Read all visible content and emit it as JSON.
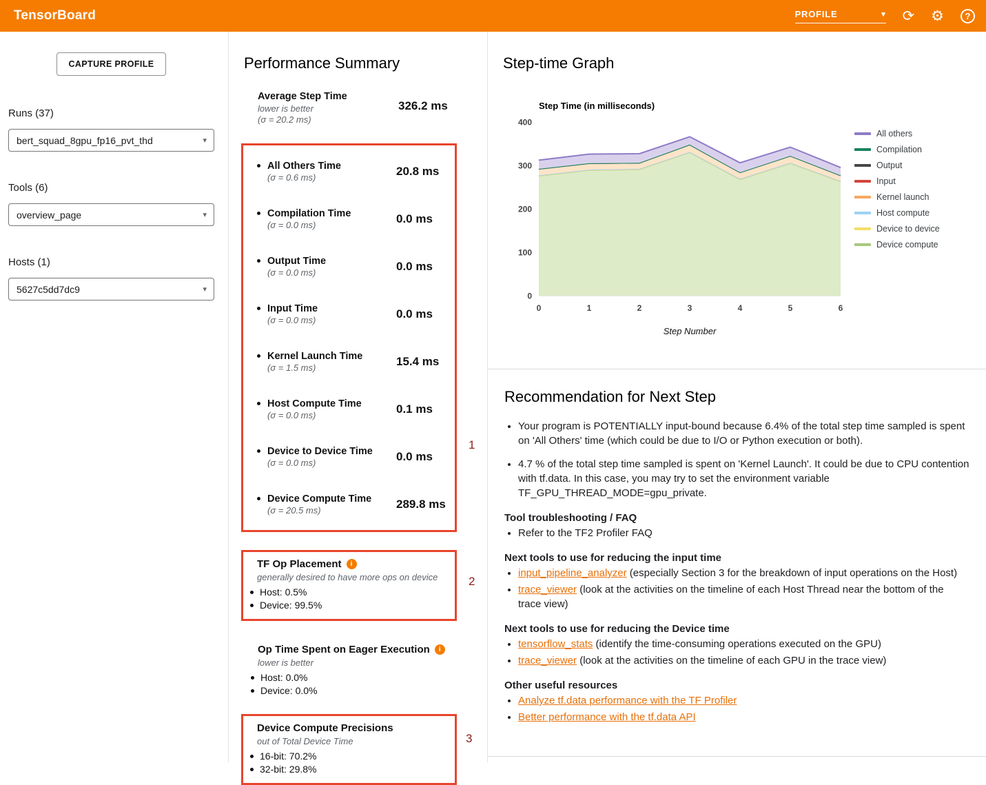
{
  "app": {
    "title": "TensorBoard",
    "nav_selected": "PROFILE"
  },
  "icons": {
    "caret_down": "▾",
    "reload": "⟳",
    "settings": "⚙",
    "help": "?",
    "info": "i"
  },
  "colors": {
    "header": "#f57c00",
    "link": "#e8710a",
    "annotation_box": "#e8452c",
    "annotation_label": "#8c1d18"
  },
  "sidebar": {
    "capture_button": "CAPTURE PROFILE",
    "runs": {
      "label": "Runs (37)",
      "value": "bert_squad_8gpu_fp16_pvt_thd"
    },
    "tools": {
      "label": "Tools (6)",
      "value": "overview_page"
    },
    "hosts": {
      "label": "Hosts (1)",
      "value": "5627c5dd7dc9"
    }
  },
  "summary": {
    "title": "Performance Summary",
    "average": {
      "label": "Average Step Time",
      "note": "lower is better",
      "sigma": "(σ = 20.2 ms)",
      "value": "326.2 ms"
    },
    "metrics": [
      {
        "label": "All Others Time",
        "sigma": "(σ = 0.6 ms)",
        "value": "20.8 ms"
      },
      {
        "label": "Compilation Time",
        "sigma": "(σ = 0.0 ms)",
        "value": "0.0 ms"
      },
      {
        "label": "Output Time",
        "sigma": "(σ = 0.0 ms)",
        "value": "0.0 ms"
      },
      {
        "label": "Input Time",
        "sigma": "(σ = 0.0 ms)",
        "value": "0.0 ms"
      },
      {
        "label": "Kernel Launch Time",
        "sigma": "(σ = 1.5 ms)",
        "value": "15.4 ms"
      },
      {
        "label": "Host Compute Time",
        "sigma": "(σ = 0.0 ms)",
        "value": "0.1 ms"
      },
      {
        "label": "Device to Device Time",
        "sigma": "(σ = 0.0 ms)",
        "value": "0.0 ms"
      },
      {
        "label": "Device Compute Time",
        "sigma": "(σ = 20.5 ms)",
        "value": "289.8 ms"
      }
    ],
    "annotations": {
      "box1": "1",
      "box2": "2",
      "box3": "3"
    },
    "tf_op_placement": {
      "title": "TF Op Placement",
      "note": "generally desired to have more ops on device",
      "items": [
        "Host: 0.5%",
        "Device: 99.5%"
      ]
    },
    "eager": {
      "title": "Op Time Spent on Eager Execution",
      "note": "lower is better",
      "items": [
        "Host: 0.0%",
        "Device: 0.0%"
      ]
    },
    "precisions": {
      "title": "Device Compute Precisions",
      "note": "out of Total Device Time",
      "items": [
        "16-bit: 70.2%",
        "32-bit: 29.8%"
      ]
    }
  },
  "graph": {
    "title": "Step-time Graph"
  },
  "chart_data": {
    "type": "area",
    "stacked": true,
    "title": "Step Time (in milliseconds)",
    "xlabel": "Step Number",
    "x": [
      0,
      1,
      2,
      3,
      4,
      5,
      6
    ],
    "ylim": [
      0,
      400
    ],
    "yticks": [
      0,
      100,
      200,
      300,
      400
    ],
    "grid": false,
    "legend_position": "right",
    "series": [
      {
        "name": "Device compute",
        "color": "#a8c87e",
        "fill": "#ddebc8",
        "values": [
          276,
          289,
          291,
          330,
          268,
          305,
          263
        ]
      },
      {
        "name": "Device to device",
        "color": "#f2df66",
        "fill": "#faf3cc",
        "values": [
          0,
          0,
          0,
          0,
          0,
          0,
          0
        ]
      },
      {
        "name": "Host compute",
        "color": "#9ed2f2",
        "fill": "#e1f0fa",
        "values": [
          1,
          1,
          1,
          1,
          1,
          1,
          1
        ]
      },
      {
        "name": "Kernel launch",
        "color": "#f6a860",
        "fill": "#fce4c8",
        "values": [
          15,
          15,
          14,
          17,
          15,
          16,
          13
        ]
      },
      {
        "name": "Input",
        "color": "#d4453b",
        "fill": "#f5c9c5",
        "values": [
          0,
          0,
          0,
          0,
          0,
          0,
          0
        ]
      },
      {
        "name": "Output",
        "color": "#45484b",
        "fill": "#d8d8d8",
        "values": [
          0,
          0,
          0,
          0,
          0,
          0,
          0
        ]
      },
      {
        "name": "Compilation",
        "color": "#178262",
        "fill": "#cde7de",
        "values": [
          0,
          0,
          0,
          0,
          0,
          0,
          0
        ]
      },
      {
        "name": "All others",
        "color": "#8e7bc6",
        "fill": "#d9d1ec",
        "values": [
          20,
          21,
          21,
          18,
          22,
          20,
          18
        ]
      }
    ]
  },
  "recommendation": {
    "title": "Recommendation for Next Step",
    "bullets": [
      "Your program is POTENTIALLY input-bound because 6.4% of the total step time sampled is spent on 'All Others' time (which could be due to I/O or Python execution or both).",
      "4.7 % of the total step time sampled is spent on 'Kernel Launch'. It could be due to CPU contention with tf.data. In this case, you may try to set the environment variable TF_GPU_THREAD_MODE=gpu_private."
    ],
    "sections": [
      {
        "heading": "Tool troubleshooting / FAQ",
        "items": [
          {
            "pre": "Refer to the TF2 Profiler FAQ",
            "link": "",
            "post": ""
          }
        ]
      },
      {
        "heading": "Next tools to use for reducing the input time",
        "items": [
          {
            "pre": "",
            "link": "input_pipeline_analyzer",
            "post": " (especially Section 3 for the breakdown of input operations on the Host)"
          },
          {
            "pre": "",
            "link": "trace_viewer",
            "post": " (look at the activities on the timeline of each Host Thread near the bottom of the trace view)"
          }
        ]
      },
      {
        "heading": "Next tools to use for reducing the Device time",
        "items": [
          {
            "pre": "",
            "link": "tensorflow_stats",
            "post": " (identify the time-consuming operations executed on the GPU)"
          },
          {
            "pre": "",
            "link": "trace_viewer",
            "post": " (look at the activities on the timeline of each GPU in the trace view)"
          }
        ]
      },
      {
        "heading": "Other useful resources",
        "items": [
          {
            "pre": "",
            "link": "Analyze tf.data performance with the TF Profiler",
            "post": ""
          },
          {
            "pre": "",
            "link": "Better performance with the tf.data API",
            "post": ""
          }
        ]
      }
    ]
  }
}
